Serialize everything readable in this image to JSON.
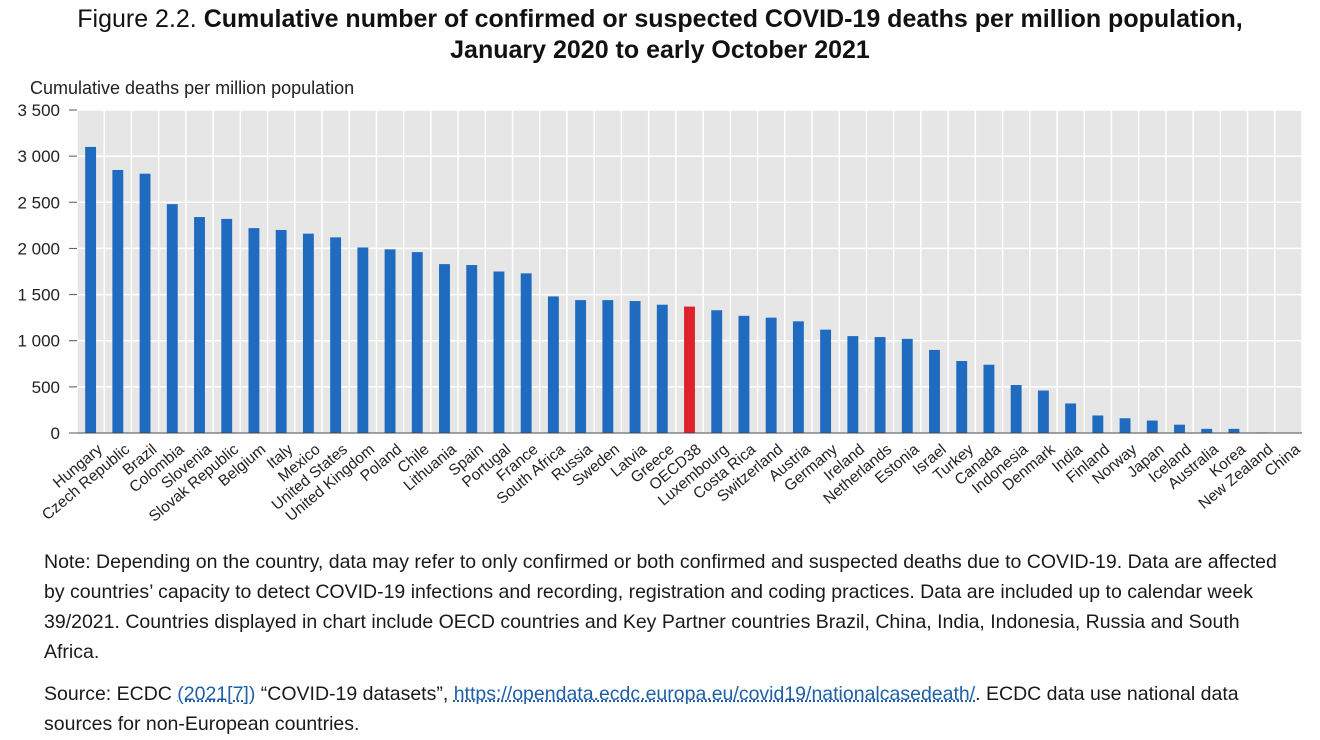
{
  "figure_prefix": "Figure 2.2.",
  "figure_title_line1": "Cumulative number of confirmed or suspected COVID-19 deaths per million population,",
  "figure_title_line2": "January 2020 to early October 2021",
  "note": "Note: Depending on the country, data may refer to only confirmed or both confirmed and suspected deaths due to COVID-19. Data are affected by countries’ capacity to detect COVID-19 infections and recording, registration and coding practices. Data are included up to calendar week 39/2021. Countries displayed in chart include OECD countries and Key Partner countries Brazil, China, India, Indonesia, Russia and South Africa.",
  "source": {
    "prefix": "Source: ECDC ",
    "ref": "(2021[7])",
    "middle": " “COVID-19 datasets”, ",
    "url": "https://opendata.ecdc.europa.eu/covid19/nationalcasedeath/",
    "suffix": ". ECDC data use national data sources for non-European countries."
  },
  "colors": {
    "bar": "#1f6bbf",
    "highlight": "#e0212b",
    "plot_bg": "#e6e6e6",
    "grid": "#ffffff"
  },
  "chart_data": {
    "type": "bar",
    "title": "Cumulative number of confirmed or suspected COVID-19 deaths per million population, January 2020 to early October 2021",
    "ylabel": "Cumulative deaths per million population",
    "xlabel": "",
    "ylim": [
      0,
      3500
    ],
    "yticks": [
      0,
      500,
      1000,
      1500,
      2000,
      2500,
      3000,
      3500
    ],
    "ytick_labels": [
      "0",
      "500",
      "1 000",
      "1 500",
      "2 000",
      "2 500",
      "3 000",
      "3 500"
    ],
    "highlight": "OECD38",
    "categories": [
      "Hungary",
      "Czech Republic",
      "Brazil",
      "Colombia",
      "Slovenia",
      "Slovak Republic",
      "Belgium",
      "Italy",
      "Mexico",
      "United States",
      "United Kingdom",
      "Poland",
      "Chile",
      "Lithuania",
      "Spain",
      "Portugal",
      "France",
      "South Africa",
      "Russia",
      "Sweden",
      "Latvia",
      "Greece",
      "OECD38",
      "Luxembourg",
      "Costa Rica",
      "Switzerland",
      "Austria",
      "Germany",
      "Ireland",
      "Netherlands",
      "Estonia",
      "Israel",
      "Turkey",
      "Canada",
      "Indonesia",
      "Denmark",
      "India",
      "Finland",
      "Norway",
      "Japan",
      "Iceland",
      "Australia",
      "Korea",
      "New Zealand",
      "China"
    ],
    "values": [
      3100,
      2850,
      2810,
      2480,
      2340,
      2320,
      2220,
      2200,
      2160,
      2120,
      2010,
      1990,
      1960,
      1830,
      1820,
      1750,
      1730,
      1480,
      1440,
      1440,
      1430,
      1390,
      1370,
      1330,
      1270,
      1250,
      1210,
      1120,
      1050,
      1040,
      1020,
      900,
      780,
      740,
      520,
      460,
      320,
      190,
      160,
      135,
      90,
      45,
      45,
      6,
      3
    ]
  }
}
